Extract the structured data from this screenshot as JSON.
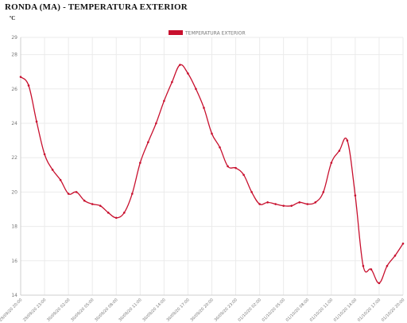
{
  "header": {
    "title": "RONDA (MA) - TEMPERATURA EXTERIOR",
    "unit_label": "ºC"
  },
  "chart_data": {
    "type": "line",
    "title": "RONDA (MA) - TEMPERATURA EXTERIOR",
    "ylabel": "ºC",
    "xlabel": "",
    "ylim": [
      14,
      29
    ],
    "yticks": [
      14,
      16,
      18,
      20,
      22,
      24,
      26,
      28,
      29
    ],
    "grid": true,
    "legend_position": "top-center",
    "colors": {
      "series": "#c8102e",
      "grid": "#ebebeb",
      "axis": "#cfcfcf"
    },
    "x_tick_labels": [
      "29/09/20 20:00",
      "29/09/20 23:00",
      "30/09/20 02:00",
      "30/09/20 05:00",
      "30/09/20 08:00",
      "30/09/20 11:00",
      "30/09/20 14:00",
      "30/09/20 17:00",
      "30/09/20 20:00",
      "30/09/20 23:00",
      "01/10/20 02:00",
      "01/10/20 05:00",
      "01/10/20 08:00",
      "01/10/20 11:00",
      "01/10/20 14:00",
      "01/10/20 17:00",
      "01/10/20 20:00"
    ],
    "series": [
      {
        "name": "TEMPERATURA EXTERIOR",
        "values": [
          26.7,
          26.2,
          24.1,
          22.2,
          21.3,
          20.7,
          19.9,
          20.0,
          19.5,
          19.3,
          19.2,
          18.8,
          18.5,
          18.8,
          19.9,
          21.7,
          22.9,
          24.0,
          25.3,
          26.4,
          27.4,
          26.9,
          26.0,
          24.9,
          23.4,
          22.6,
          21.5,
          21.4,
          21.0,
          20.0,
          19.3,
          19.4,
          19.3,
          19.2,
          19.2,
          19.4,
          19.3,
          19.4,
          20.0,
          21.7,
          22.4,
          23.0,
          19.8,
          15.7,
          15.5,
          14.7,
          15.7,
          16.3,
          17.0
        ]
      }
    ]
  }
}
